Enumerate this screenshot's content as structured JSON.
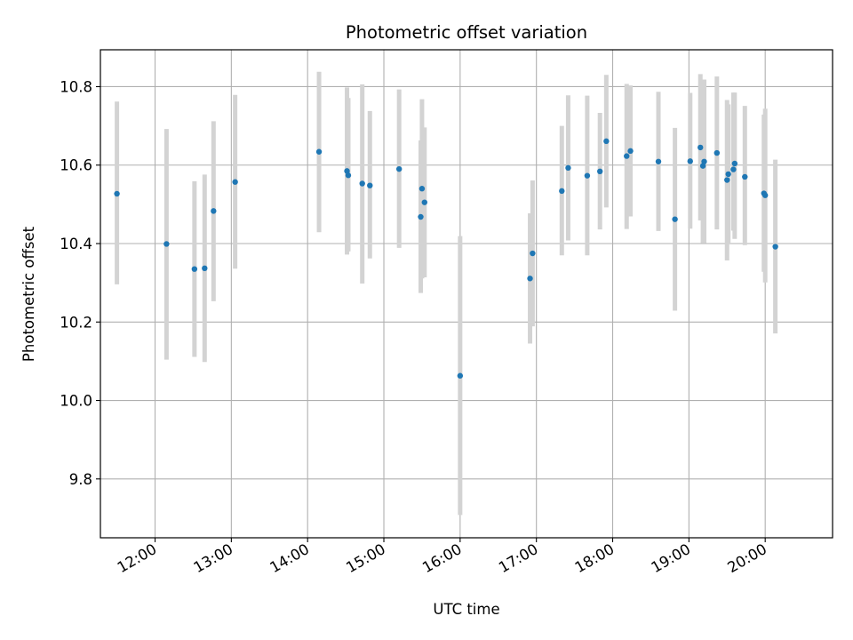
{
  "chart_data": {
    "type": "scatter",
    "title": "Photometric offset variation",
    "xlabel": "UTC time",
    "ylabel": "Photometric offset",
    "x_unit": "time of day (HH:MM, UTC)",
    "xlim": [
      "11:17",
      "20:53"
    ],
    "ylim": [
      9.65,
      10.894
    ],
    "x_ticks": [
      "12:00",
      "13:00",
      "14:00",
      "15:00",
      "16:00",
      "17:00",
      "18:00",
      "19:00",
      "20:00"
    ],
    "y_ticks": [
      9.8,
      10.0,
      10.2,
      10.4,
      10.6,
      10.8
    ],
    "grid": true,
    "marker_color": "#1f77b4",
    "errorbar_color": "#d3d3d3",
    "points": [
      {
        "t": "11:30",
        "y": 10.527,
        "lo": 10.296,
        "hi": 10.762
      },
      {
        "t": "12:09",
        "y": 10.399,
        "lo": 10.104,
        "hi": 10.692
      },
      {
        "t": "12:31",
        "y": 10.335,
        "lo": 10.111,
        "hi": 10.559
      },
      {
        "t": "12:39",
        "y": 10.337,
        "lo": 10.098,
        "hi": 10.576
      },
      {
        "t": "12:46",
        "y": 10.483,
        "lo": 10.253,
        "hi": 10.712
      },
      {
        "t": "13:03",
        "y": 10.557,
        "lo": 10.336,
        "hi": 10.779
      },
      {
        "t": "14:09",
        "y": 10.634,
        "lo": 10.429,
        "hi": 10.838
      },
      {
        "t": "14:31",
        "y": 10.585,
        "lo": 10.372,
        "hi": 10.798
      },
      {
        "t": "14:32",
        "y": 10.574,
        "lo": 10.38,
        "hi": 10.771
      },
      {
        "t": "14:43",
        "y": 10.553,
        "lo": 10.298,
        "hi": 10.806
      },
      {
        "t": "14:49",
        "y": 10.548,
        "lo": 10.362,
        "hi": 10.738
      },
      {
        "t": "15:12",
        "y": 10.59,
        "lo": 10.389,
        "hi": 10.793
      },
      {
        "t": "15:29",
        "y": 10.468,
        "lo": 10.274,
        "hi": 10.663
      },
      {
        "t": "15:30",
        "y": 10.54,
        "lo": 10.311,
        "hi": 10.768
      },
      {
        "t": "15:32",
        "y": 10.505,
        "lo": 10.314,
        "hi": 10.696
      },
      {
        "t": "16:00",
        "y": 10.063,
        "lo": 9.708,
        "hi": 10.419
      },
      {
        "t": "16:55",
        "y": 10.311,
        "lo": 10.145,
        "hi": 10.477
      },
      {
        "t": "16:57",
        "y": 10.375,
        "lo": 10.189,
        "hi": 10.561
      },
      {
        "t": "17:20",
        "y": 10.534,
        "lo": 10.37,
        "hi": 10.7
      },
      {
        "t": "17:25",
        "y": 10.593,
        "lo": 10.408,
        "hi": 10.778
      },
      {
        "t": "17:40",
        "y": 10.573,
        "lo": 10.37,
        "hi": 10.777
      },
      {
        "t": "17:50",
        "y": 10.584,
        "lo": 10.436,
        "hi": 10.733
      },
      {
        "t": "17:55",
        "y": 10.661,
        "lo": 10.492,
        "hi": 10.83
      },
      {
        "t": "18:11",
        "y": 10.623,
        "lo": 10.437,
        "hi": 10.807
      },
      {
        "t": "18:14",
        "y": 10.636,
        "lo": 10.469,
        "hi": 10.803
      },
      {
        "t": "18:36",
        "y": 10.609,
        "lo": 10.432,
        "hi": 10.787
      },
      {
        "t": "18:49",
        "y": 10.462,
        "lo": 10.229,
        "hi": 10.695
      },
      {
        "t": "19:01",
        "y": 10.61,
        "lo": 10.438,
        "hi": 10.784
      },
      {
        "t": "19:09",
        "y": 10.645,
        "lo": 10.459,
        "hi": 10.832
      },
      {
        "t": "19:11",
        "y": 10.598,
        "lo": 10.401,
        "hi": 10.795
      },
      {
        "t": "19:12",
        "y": 10.609,
        "lo": 10.401,
        "hi": 10.818
      },
      {
        "t": "19:22",
        "y": 10.631,
        "lo": 10.436,
        "hi": 10.826
      },
      {
        "t": "19:30",
        "y": 10.562,
        "lo": 10.357,
        "hi": 10.766
      },
      {
        "t": "19:31",
        "y": 10.577,
        "lo": 10.4,
        "hi": 10.755
      },
      {
        "t": "19:35",
        "y": 10.589,
        "lo": 10.433,
        "hi": 10.785
      },
      {
        "t": "19:36",
        "y": 10.604,
        "lo": 10.412,
        "hi": 10.785
      },
      {
        "t": "19:44",
        "y": 10.57,
        "lo": 10.396,
        "hi": 10.751
      },
      {
        "t": "19:59",
        "y": 10.528,
        "lo": 10.328,
        "hi": 10.729
      },
      {
        "t": "20:00",
        "y": 10.523,
        "lo": 10.301,
        "hi": 10.744
      },
      {
        "t": "20:08",
        "y": 10.392,
        "lo": 10.171,
        "hi": 10.614
      }
    ]
  }
}
